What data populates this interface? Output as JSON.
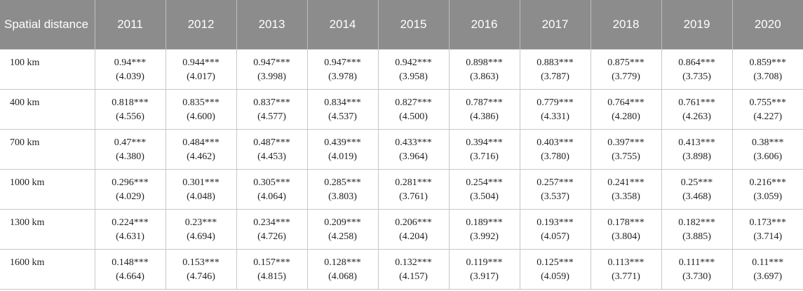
{
  "table": {
    "header": {
      "first": "Spatial distance",
      "years": [
        "2011",
        "2012",
        "2013",
        "2014",
        "2015",
        "2016",
        "2017",
        "2018",
        "2019",
        "2020"
      ]
    },
    "rows": [
      {
        "distance": "100 km",
        "values": [
          [
            "0.94***",
            "(4.039)"
          ],
          [
            "0.944***",
            "(4.017)"
          ],
          [
            "0.947***",
            "(3.998)"
          ],
          [
            "0.947***",
            "(3.978)"
          ],
          [
            "0.942***",
            "(3.958)"
          ],
          [
            "0.898***",
            "(3.863)"
          ],
          [
            "0.883***",
            "(3.787)"
          ],
          [
            "0.875***",
            "(3.779)"
          ],
          [
            "0.864***",
            "(3.735)"
          ],
          [
            "0.859***",
            "(3.708)"
          ]
        ]
      },
      {
        "distance": "400 km",
        "values": [
          [
            "0.818***",
            "(4.556)"
          ],
          [
            "0.835***",
            "(4.600)"
          ],
          [
            "0.837***",
            "(4.577)"
          ],
          [
            "0.834***",
            "(4.537)"
          ],
          [
            "0.827***",
            "(4.500)"
          ],
          [
            "0.787***",
            "(4.386)"
          ],
          [
            "0.779***",
            "(4.331)"
          ],
          [
            "0.764***",
            "(4.280)"
          ],
          [
            "0.761***",
            "(4.263)"
          ],
          [
            "0.755***",
            "(4.227)"
          ]
        ]
      },
      {
        "distance": "700 km",
        "values": [
          [
            "0.47***",
            "(4.380)"
          ],
          [
            "0.484***",
            "(4.462)"
          ],
          [
            "0.487***",
            "(4.453)"
          ],
          [
            "0.439***",
            "(4.019)"
          ],
          [
            "0.433***",
            "(3.964)"
          ],
          [
            "0.394***",
            "(3.716)"
          ],
          [
            "0.403***",
            "(3.780)"
          ],
          [
            "0.397***",
            "(3.755)"
          ],
          [
            "0.413***",
            "(3.898)"
          ],
          [
            "0.38***",
            "(3.606)"
          ]
        ]
      },
      {
        "distance": "1000 km",
        "values": [
          [
            "0.296***",
            "(4.029)"
          ],
          [
            "0.301***",
            "(4.048)"
          ],
          [
            "0.305***",
            "(4.064)"
          ],
          [
            "0.285***",
            "(3.803)"
          ],
          [
            "0.281***",
            "(3.761)"
          ],
          [
            "0.254***",
            "(3.504)"
          ],
          [
            "0.257***",
            "(3.537)"
          ],
          [
            "0.241***",
            "(3.358)"
          ],
          [
            "0.25***",
            "(3.468)"
          ],
          [
            "0.216***",
            "(3.059)"
          ]
        ]
      },
      {
        "distance": "1300 km",
        "values": [
          [
            "0.224***",
            "(4.631)"
          ],
          [
            "0.23***",
            "(4.694)"
          ],
          [
            "0.234***",
            "(4.726)"
          ],
          [
            "0.209***",
            "(4.258)"
          ],
          [
            "0.206***",
            "(4.204)"
          ],
          [
            "0.189***",
            "(3.992)"
          ],
          [
            "0.193***",
            "(4.057)"
          ],
          [
            "0.178***",
            "(3.804)"
          ],
          [
            "0.182***",
            "(3.885)"
          ],
          [
            "0.173***",
            "(3.714)"
          ]
        ]
      },
      {
        "distance": "1600 km",
        "values": [
          [
            "0.148***",
            "(4.664)"
          ],
          [
            "0.153***",
            "(4.746)"
          ],
          [
            "0.157***",
            "(4.815)"
          ],
          [
            "0.128***",
            "(4.068)"
          ],
          [
            "0.132***",
            "(4.157)"
          ],
          [
            "0.119***",
            "(3.917)"
          ],
          [
            "0.125***",
            "(4.059)"
          ],
          [
            "0.113***",
            "(3.771)"
          ],
          [
            "0.111***",
            "(3.730)"
          ],
          [
            "0.11***",
            "(3.697)"
          ]
        ]
      }
    ]
  }
}
